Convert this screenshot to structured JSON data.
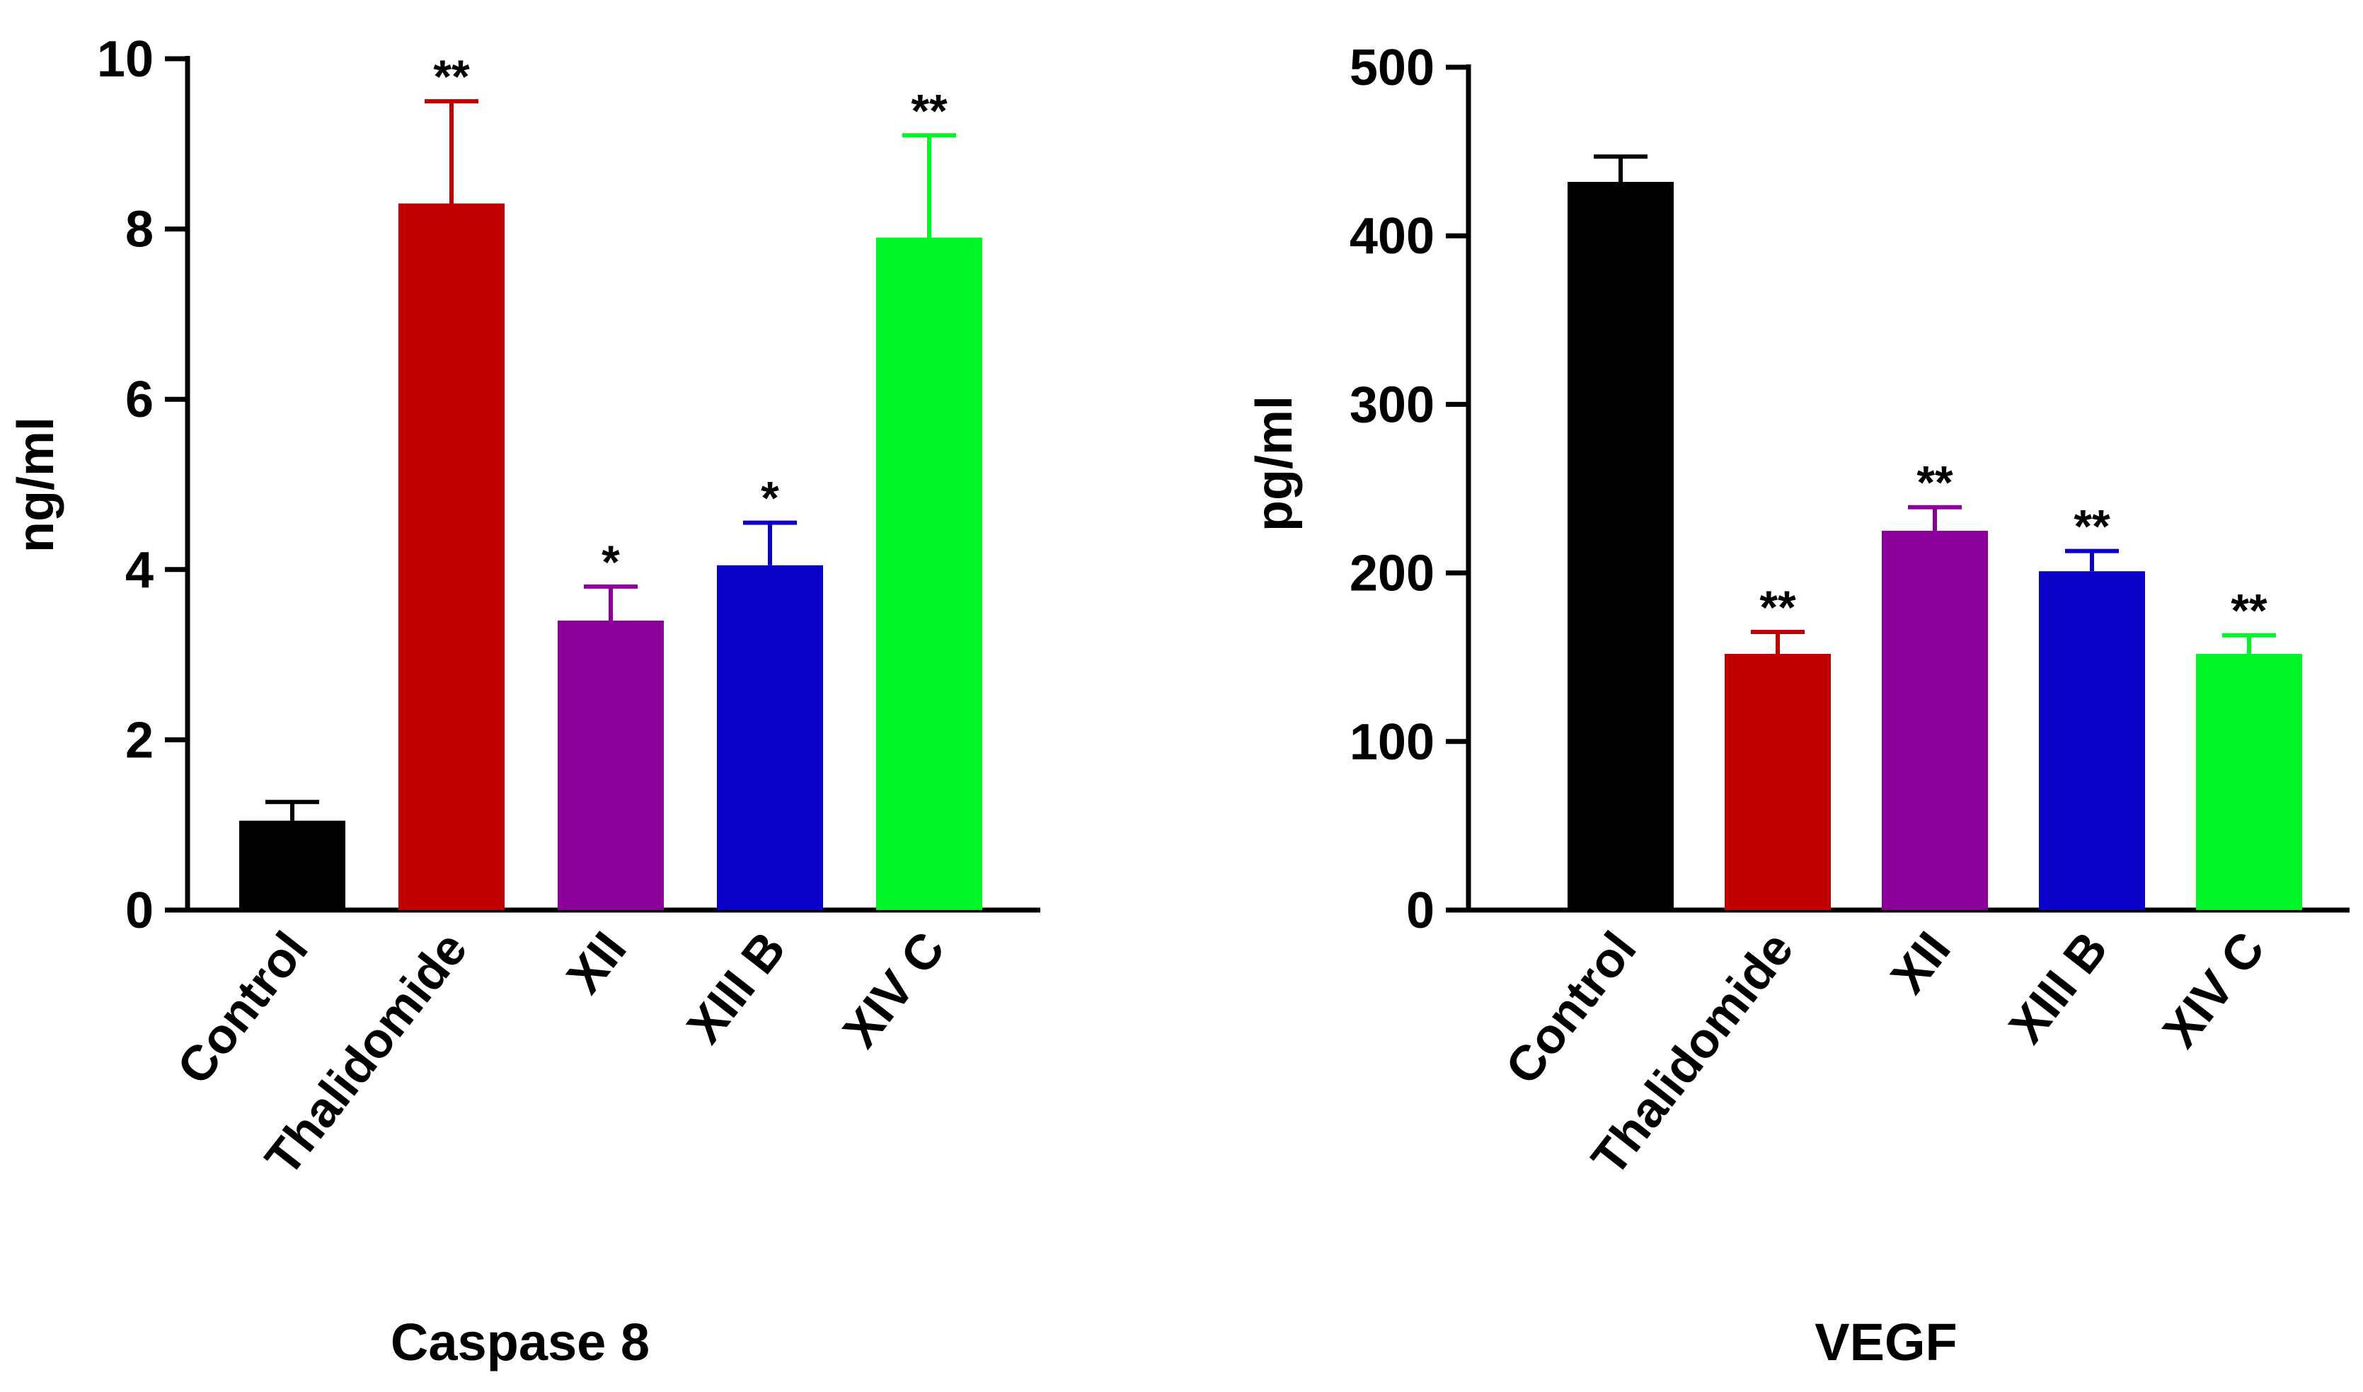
{
  "chart_data": [
    {
      "type": "bar",
      "title": "Caspase 8",
      "ylabel": "ng/ml",
      "xlabel": "",
      "ylim": [
        0,
        10
      ],
      "yticks": [
        0,
        2,
        4,
        6,
        8,
        10
      ],
      "categories": [
        "Control",
        "Thalidomide",
        "XII",
        "XIII B",
        "XIV C"
      ],
      "values": [
        1.05,
        8.3,
        3.4,
        4.05,
        7.9
      ],
      "errors": [
        0.22,
        1.2,
        0.4,
        0.5,
        1.2
      ],
      "significance": [
        "",
        "**",
        "*",
        "*",
        "**"
      ],
      "colors": [
        "#000000",
        "#c00000",
        "#8b0099",
        "#0a00c8",
        "#00f528"
      ],
      "grid": false,
      "legend": "none"
    },
    {
      "type": "bar",
      "title": "VEGF",
      "ylabel": "pg/ml",
      "xlabel": "",
      "ylim": [
        0,
        500
      ],
      "yticks": [
        0,
        100,
        200,
        300,
        400,
        500
      ],
      "categories": [
        "Control",
        "Thalidomide",
        "XII",
        "XIII B",
        "XIV C"
      ],
      "values": [
        432,
        152,
        225,
        201,
        152
      ],
      "errors": [
        15,
        13,
        14,
        12,
        11
      ],
      "significance": [
        "",
        "**",
        "**",
        "**",
        "**"
      ],
      "colors": [
        "#000000",
        "#c00000",
        "#8b0099",
        "#0a00c8",
        "#00f528"
      ],
      "grid": false,
      "legend": "none"
    }
  ]
}
